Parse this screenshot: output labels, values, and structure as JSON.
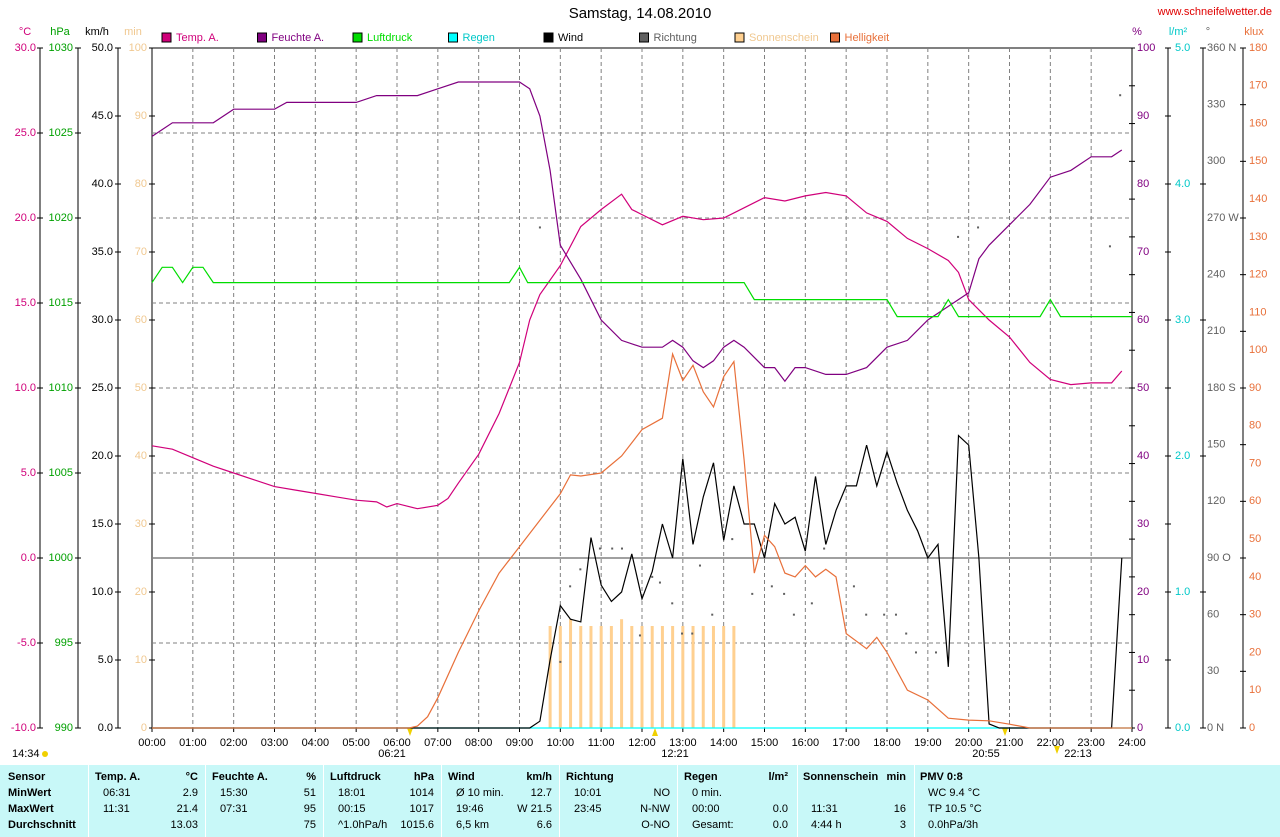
{
  "chart_data": {
    "type": "line",
    "title": "Samstag, 14.08.2010",
    "source": "www.schneifelwetter.de",
    "xlim": [
      0,
      24
    ],
    "xticks": [
      {
        "value": 0,
        "label": "00:00"
      },
      {
        "value": 1,
        "label": "01:00"
      },
      {
        "value": 2,
        "label": "02:00"
      },
      {
        "value": 3,
        "label": "03:00"
      },
      {
        "value": 4,
        "label": "04:00"
      },
      {
        "value": 5,
        "label": "05:00"
      },
      {
        "value": 6,
        "label": "06:00"
      },
      {
        "value": 7,
        "label": "07:00"
      },
      {
        "value": 8,
        "label": "08:00"
      },
      {
        "value": 9,
        "label": "09:00"
      },
      {
        "value": 10,
        "label": "10:00"
      },
      {
        "value": 11,
        "label": "11:00"
      },
      {
        "value": 12,
        "label": "12:00"
      },
      {
        "value": 13,
        "label": "13:00"
      },
      {
        "value": 14,
        "label": "14:00"
      },
      {
        "value": 15,
        "label": "15:00"
      },
      {
        "value": 16,
        "label": "16:00"
      },
      {
        "value": 17,
        "label": "17:00"
      },
      {
        "value": 18,
        "label": "18:00"
      },
      {
        "value": 19,
        "label": "19:00"
      },
      {
        "value": 20,
        "label": "20:00"
      },
      {
        "value": 21,
        "label": "21:00"
      },
      {
        "value": 22,
        "label": "22:00"
      },
      {
        "value": 23,
        "label": "23:00"
      },
      {
        "value": 24,
        "label": "24:00"
      }
    ],
    "grid": true,
    "zero_line": true,
    "annotations": [
      "06:21",
      "12:21",
      "20:55",
      "22:13",
      "14:34"
    ],
    "axes": [
      {
        "id": "y",
        "side": "left",
        "label": "°C",
        "color": "#d0007a",
        "lim": [
          -10,
          30
        ],
        "ticks": [
          {
            "value": -10,
            "label": "-10.0"
          },
          {
            "value": -5,
            "label": "-5.0"
          },
          {
            "value": 0,
            "label": "0.0"
          },
          {
            "value": 5,
            "label": "5.0"
          },
          {
            "value": 10,
            "label": "10.0"
          },
          {
            "value": 15,
            "label": "15.0"
          },
          {
            "value": 20,
            "label": "20.0"
          },
          {
            "value": 25,
            "label": "25.0"
          },
          {
            "value": 30,
            "label": "30.0"
          }
        ]
      },
      {
        "id": "y2",
        "side": "left",
        "label": "hPa",
        "color": "#00a000",
        "lim": [
          990,
          1030
        ],
        "ticks": [
          990,
          995,
          1000,
          1005,
          1010,
          1015,
          1020,
          1025,
          1030
        ]
      },
      {
        "id": "y3",
        "side": "left",
        "label": "km/h",
        "color": "#000000",
        "lim": [
          0,
          50
        ],
        "ticks": [
          {
            "value": 0,
            "label": "0.0"
          },
          {
            "value": 5,
            "label": "5.0"
          },
          {
            "value": 10,
            "label": "10.0"
          },
          {
            "value": 15,
            "label": "15.0"
          },
          {
            "value": 20,
            "label": "20.0"
          },
          {
            "value": 25,
            "label": "25.0"
          },
          {
            "value": 30,
            "label": "30.0"
          },
          {
            "value": 35,
            "label": "35.0"
          },
          {
            "value": 40,
            "label": "40.0"
          },
          {
            "value": 45,
            "label": "45.0"
          },
          {
            "value": 50,
            "label": "50.0"
          }
        ]
      },
      {
        "id": "y4",
        "side": "left",
        "label": "min",
        "color": "#f0c890",
        "lim": [
          0,
          100
        ],
        "ticks": [
          0,
          10,
          20,
          30,
          40,
          50,
          60,
          70,
          80,
          90,
          100
        ]
      },
      {
        "id": "y5",
        "side": "right",
        "label": "%",
        "color": "#800080",
        "lim": [
          0,
          100
        ],
        "ticks": [
          0,
          10,
          20,
          30,
          40,
          50,
          60,
          70,
          80,
          90,
          100
        ]
      },
      {
        "id": "y6",
        "side": "right",
        "label": "l/m²",
        "color": "#00c8c8",
        "lim": [
          0,
          5
        ],
        "ticks": [
          {
            "value": 0,
            "label": "0.0"
          },
          {
            "value": 1,
            "label": "1.0"
          },
          {
            "value": 2,
            "label": "2.0"
          },
          {
            "value": 3,
            "label": "3.0"
          },
          {
            "value": 4,
            "label": "4.0"
          },
          {
            "value": 5,
            "label": "5.0"
          }
        ]
      },
      {
        "id": "y7",
        "side": "right",
        "label": "°",
        "color": "#606060",
        "lim": [
          0,
          360
        ],
        "ticks": [
          {
            "value": 0,
            "label": "0 N"
          },
          30,
          60,
          {
            "value": 90,
            "label": "90 O"
          },
          120,
          150,
          {
            "value": 180,
            "label": "180 S"
          },
          210,
          240,
          {
            "value": 270,
            "label": "270 W"
          },
          300,
          330,
          {
            "value": 360,
            "label": "360 N"
          }
        ]
      },
      {
        "id": "y8",
        "side": "right",
        "label": "klux",
        "color": "#e8703a",
        "lim": [
          0,
          180
        ],
        "ticks": [
          0,
          10,
          20,
          30,
          40,
          50,
          60,
          70,
          80,
          90,
          100,
          110,
          120,
          130,
          140,
          150,
          160,
          170,
          180
        ]
      }
    ],
    "series": [
      {
        "name": "Temp. A.",
        "type": "line",
        "axis": "y",
        "color": "#d0007a",
        "x": [
          0,
          0.5,
          1,
          1.5,
          2,
          2.5,
          3,
          3.5,
          4,
          4.5,
          5,
          5.5,
          5.75,
          6,
          6.5,
          7,
          7.25,
          7.5,
          8,
          8.5,
          9,
          9.25,
          9.5,
          10,
          10.5,
          11,
          11.5,
          11.75,
          12,
          12.5,
          13,
          13.5,
          14,
          14.5,
          15,
          15.5,
          16,
          16.5,
          17,
          17.5,
          18,
          18.5,
          19,
          19.5,
          19.75,
          20,
          20.5,
          21,
          21.5,
          22,
          22.5,
          23,
          23.5,
          23.75
        ],
        "values": [
          6.6,
          6.4,
          5.9,
          5.4,
          5.0,
          4.6,
          4.2,
          4.0,
          3.8,
          3.6,
          3.4,
          3.3,
          3.0,
          3.2,
          2.9,
          3.1,
          3.5,
          4.4,
          6.1,
          8.5,
          11.5,
          14.0,
          15.5,
          17.2,
          19.5,
          20.5,
          21.4,
          20.5,
          20.2,
          19.6,
          20.1,
          19.9,
          20.0,
          20.6,
          21.2,
          21.0,
          21.3,
          21.5,
          21.3,
          20.3,
          19.8,
          18.8,
          18.2,
          17.5,
          16.8,
          15.2,
          14.0,
          13.0,
          11.5,
          10.5,
          10.2,
          10.3,
          10.3,
          11.0
        ]
      },
      {
        "name": "Feuchte A.",
        "type": "line",
        "axis": "y5",
        "color": "#800080",
        "x": [
          0,
          0.5,
          1.5,
          2,
          3,
          3.3,
          5,
          5.5,
          6.5,
          7,
          7.5,
          9,
          9.25,
          9.5,
          9.75,
          10,
          10.5,
          11,
          11.5,
          12,
          12.5,
          12.75,
          13,
          13.25,
          13.5,
          13.75,
          14,
          14.25,
          14.5,
          15,
          15.25,
          15.5,
          15.75,
          16,
          16.5,
          17,
          17.5,
          18,
          18.5,
          19,
          19.5,
          20,
          20.25,
          20.5,
          21,
          21.5,
          22,
          22.5,
          23,
          23.5,
          23.75
        ],
        "values": [
          87,
          89,
          89,
          91,
          91,
          92,
          92,
          93,
          93,
          94,
          95,
          95,
          94,
          90,
          82,
          71,
          66,
          60,
          57,
          56,
          56,
          57,
          56,
          54,
          53,
          54,
          56,
          57,
          56,
          53,
          53,
          51,
          53,
          53,
          52,
          52,
          53,
          56,
          57,
          60,
          62,
          64,
          69,
          71,
          74,
          77,
          81,
          82,
          84,
          84,
          85
        ]
      },
      {
        "name": "Luftdruck",
        "type": "line",
        "axis": "y2",
        "color": "#00dd00",
        "x": [
          0,
          0.25,
          0.5,
          0.75,
          1,
          1.25,
          1.5,
          8.75,
          9,
          9.2,
          14.5,
          14.75,
          18,
          18.25,
          19.25,
          19.5,
          19.75,
          21.75,
          22,
          22.25,
          24
        ],
        "values": [
          1016.2,
          1017.1,
          1017.1,
          1016.2,
          1017.1,
          1017.1,
          1016.2,
          1016.2,
          1017.1,
          1016.2,
          1016.2,
          1015.2,
          1015.2,
          1014.2,
          1014.2,
          1015.2,
          1014.2,
          1014.2,
          1015.2,
          1014.2,
          1014.2
        ]
      },
      {
        "name": "Regen",
        "type": "line",
        "axis": "y6",
        "color": "#00ffff",
        "x": [
          0,
          24
        ],
        "values": [
          0.0,
          0.0
        ]
      },
      {
        "name": "Wind",
        "type": "line",
        "axis": "y3",
        "color": "#000000",
        "x": [
          0,
          9.25,
          9.5,
          9.75,
          10,
          10.25,
          10.5,
          10.75,
          11,
          11.25,
          11.5,
          11.75,
          12,
          12.25,
          12.5,
          12.75,
          13,
          13.25,
          13.5,
          13.75,
          14,
          14.25,
          14.5,
          14.75,
          15,
          15.25,
          15.5,
          15.75,
          16,
          16.25,
          16.5,
          16.75,
          17,
          17.25,
          17.5,
          17.75,
          18,
          18.25,
          18.5,
          18.75,
          19,
          19.25,
          19.5,
          19.75,
          20,
          20.25,
          20.5,
          20.75,
          23.5,
          23.75
        ],
        "values": [
          0,
          0,
          0.5,
          5,
          9,
          8,
          7.8,
          14,
          10.5,
          9.3,
          10,
          12.8,
          9.5,
          11.5,
          15,
          12.5,
          19.8,
          13.5,
          17,
          19.5,
          13.8,
          17.8,
          15,
          15,
          12.5,
          16.5,
          15,
          15.5,
          13,
          18.5,
          13.5,
          16,
          17.8,
          17.8,
          20.8,
          17.8,
          20.3,
          18,
          16,
          14.5,
          12.5,
          13.5,
          4.5,
          21.5,
          20.8,
          12.5,
          0.3,
          0,
          0,
          12.5
        ]
      },
      {
        "name": "Richtung",
        "type": "scatter",
        "axis": "y7",
        "color": "#606060",
        "x": [
          9.5,
          10.0,
          10.24,
          10.49,
          10.97,
          11.27,
          11.51,
          11.95,
          12.25,
          12.44,
          12.74,
          12.98,
          13.23,
          13.42,
          13.72,
          14.21,
          14.7,
          15.18,
          15.48,
          15.72,
          16.16,
          16.46,
          17.19,
          17.49,
          17.93,
          18.22,
          18.47,
          18.71,
          19.2,
          19.74,
          20.23,
          23.46,
          23.71
        ],
        "values": [
          265,
          35,
          75,
          84,
          95,
          95,
          95,
          49,
          80,
          77,
          66,
          50,
          50,
          86,
          60,
          100,
          71,
          75,
          71,
          60,
          66,
          95,
          75,
          60,
          60,
          60,
          50,
          40,
          40,
          260,
          265,
          255,
          335
        ]
      },
      {
        "name": "Sonnenschein",
        "type": "bar",
        "axis": "y4",
        "color": "#ffd090",
        "x": [
          9.75,
          10,
          10.25,
          10.5,
          10.75,
          11,
          11.25,
          11.5,
          11.75,
          12,
          12.25,
          12.5,
          12.75,
          13,
          13.25,
          13.5,
          13.75,
          14,
          14.25
        ],
        "values": [
          15,
          15,
          16,
          15,
          15,
          15,
          15,
          16,
          15,
          15,
          15,
          15,
          15,
          15,
          15,
          15,
          15,
          15,
          15
        ]
      },
      {
        "name": "Helligkeit",
        "type": "line",
        "axis": "y8",
        "color": "#e8703a",
        "x": [
          0,
          6.3,
          6.5,
          6.75,
          7,
          7.5,
          8,
          8.5,
          9,
          9.5,
          10,
          10.25,
          10.5,
          11,
          11.5,
          12,
          12.5,
          12.75,
          13,
          13.25,
          13.5,
          13.75,
          14,
          14.25,
          14.5,
          14.75,
          15,
          15.25,
          15.5,
          15.75,
          16,
          16.25,
          16.5,
          16.75,
          17,
          17.5,
          17.75,
          18,
          18.5,
          19,
          19.5,
          20,
          20.5,
          21,
          21.5,
          24
        ],
        "values": [
          0,
          0,
          0.5,
          3,
          8,
          20,
          31,
          41,
          48,
          55,
          62,
          67,
          66.7,
          67.5,
          72,
          79,
          82,
          99,
          92,
          96,
          89,
          85,
          93,
          97,
          71,
          41,
          51,
          48,
          41,
          40,
          43,
          40,
          42,
          40,
          25,
          21,
          24,
          20,
          10,
          7.4,
          2.6,
          2.1,
          1.9,
          1,
          0,
          0
        ]
      }
    ]
  },
  "table": {
    "header": [
      {
        "title": "Sensor"
      },
      {
        "title": "Temp. A.",
        "unit": "°C"
      },
      {
        "title": "Feuchte A.",
        "unit": "%"
      },
      {
        "title": "Luftdruck",
        "unit": "hPa"
      },
      {
        "title": "Wind",
        "unit": "km/h"
      },
      {
        "title": "Richtung"
      },
      {
        "title": "Regen",
        "unit": "l/m²"
      },
      {
        "title": "Sonnenschein",
        "unit": "min"
      },
      {
        "title": "PMV 0:8"
      }
    ],
    "rows": [
      {
        "label": "MinWert",
        "cells": [
          {
            "left": "06:31",
            "right": "2.9"
          },
          {
            "left": "15:30",
            "right": "51"
          },
          {
            "left": "18:01",
            "right": "1014"
          },
          {
            "left": "Ø 10 min.",
            "right": "12.7"
          },
          {
            "left": "10:01",
            "right": "NO"
          },
          {
            "left": "0 min."
          },
          {},
          {
            "left": "WC 9.4 °C"
          }
        ]
      },
      {
        "label": "MaxWert",
        "cells": [
          {
            "left": "11:31",
            "right": "21.4"
          },
          {
            "left": "07:31",
            "right": "95"
          },
          {
            "left": "00:15",
            "right": "1017"
          },
          {
            "left": "19:46",
            "right": "W 21.5"
          },
          {
            "left": "23:45",
            "right": "N-NW"
          },
          {
            "left": "00:00",
            "right": "0.0"
          },
          {
            "left": "11:31",
            "right": "16"
          },
          {
            "left": "TP 10.5 °C"
          }
        ]
      },
      {
        "label": "Durchschnitt",
        "cells": [
          {
            "right": "13.03"
          },
          {
            "right": "75"
          },
          {
            "left": "^1.0hPa/h",
            "right": "1015.6"
          },
          {
            "left": "6,5 km",
            "right": "6.6"
          },
          {
            "right": "O-NO"
          },
          {
            "left": "Gesamt:",
            "right": "0.0"
          },
          {
            "left": "4:44 h",
            "right": "3"
          },
          {
            "left": "0.0hPa/3h"
          }
        ]
      }
    ]
  }
}
